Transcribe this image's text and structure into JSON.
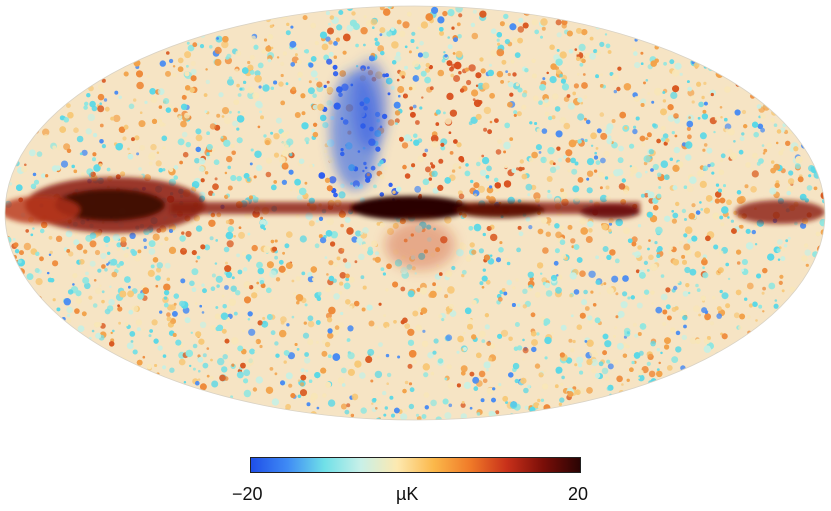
{
  "figure": {
    "projection": "mollweide",
    "description_colormap": "planck"
  },
  "colorbar": {
    "min_label": "−20",
    "max_label": "20",
    "unit_label": "µK",
    "min_value": -20,
    "max_value": 20,
    "colors": [
      "#1f4fe8",
      "#3f8bf5",
      "#6fe0e8",
      "#c8f0e8",
      "#fde9b0",
      "#fbb84a",
      "#f07a28",
      "#c8301a",
      "#7a0e08",
      "#2a0404"
    ]
  }
}
